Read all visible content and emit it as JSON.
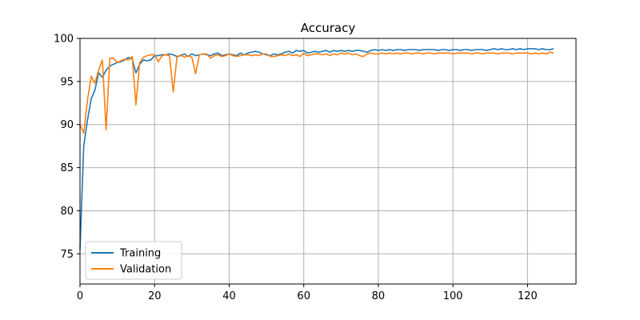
{
  "chart_data": {
    "type": "line",
    "title": "Accuracy",
    "xlabel": "",
    "ylabel": "",
    "xlim": [
      0,
      133
    ],
    "ylim": [
      71.5,
      100
    ],
    "xticks": [
      0,
      20,
      40,
      60,
      80,
      100,
      120
    ],
    "yticks": [
      75,
      80,
      85,
      90,
      95,
      100
    ],
    "grid": true,
    "legend_position": "lower-left",
    "series": [
      {
        "name": "Training",
        "color": "#1f77b4",
        "x": [
          0,
          1,
          2,
          3,
          4,
          5,
          6,
          7,
          8,
          9,
          10,
          11,
          12,
          13,
          14,
          15,
          16,
          17,
          18,
          19,
          20,
          21,
          22,
          23,
          24,
          25,
          26,
          27,
          28,
          29,
          30,
          31,
          32,
          33,
          34,
          35,
          36,
          37,
          38,
          39,
          40,
          41,
          42,
          43,
          44,
          45,
          46,
          47,
          48,
          49,
          50,
          51,
          52,
          53,
          54,
          55,
          56,
          57,
          58,
          59,
          60,
          61,
          62,
          63,
          64,
          65,
          66,
          67,
          68,
          69,
          70,
          71,
          72,
          73,
          74,
          75,
          76,
          77,
          78,
          79,
          80,
          81,
          82,
          83,
          84,
          85,
          86,
          87,
          88,
          89,
          90,
          91,
          92,
          93,
          94,
          95,
          96,
          97,
          98,
          99,
          100,
          101,
          102,
          103,
          104,
          105,
          106,
          107,
          108,
          109,
          110,
          111,
          112,
          113,
          114,
          115,
          116,
          117,
          118,
          119,
          120,
          121,
          122,
          123,
          124,
          125,
          126,
          127
        ],
        "y": [
          75.5,
          87.5,
          90.5,
          93.0,
          94.0,
          96.0,
          95.5,
          96.3,
          96.8,
          97.0,
          97.2,
          97.3,
          97.5,
          97.8,
          97.6,
          96.0,
          97.0,
          97.5,
          97.4,
          97.5,
          98.0,
          98.0,
          98.1,
          98.1,
          98.2,
          98.1,
          97.9,
          98.0,
          98.2,
          97.9,
          98.2,
          98.0,
          98.1,
          98.2,
          98.1,
          98.0,
          98.2,
          98.3,
          98.0,
          98.1,
          98.2,
          98.1,
          98.0,
          98.3,
          98.1,
          98.3,
          98.4,
          98.5,
          98.4,
          98.2,
          98.1,
          98.0,
          98.2,
          98.1,
          98.2,
          98.4,
          98.5,
          98.3,
          98.6,
          98.5,
          98.6,
          98.3,
          98.4,
          98.5,
          98.4,
          98.5,
          98.6,
          98.4,
          98.6,
          98.5,
          98.6,
          98.5,
          98.6,
          98.5,
          98.6,
          98.6,
          98.5,
          98.4,
          98.6,
          98.7,
          98.6,
          98.7,
          98.6,
          98.7,
          98.6,
          98.7,
          98.7,
          98.6,
          98.7,
          98.7,
          98.7,
          98.6,
          98.7,
          98.7,
          98.7,
          98.7,
          98.6,
          98.7,
          98.7,
          98.6,
          98.7,
          98.7,
          98.6,
          98.7,
          98.7,
          98.6,
          98.7,
          98.7,
          98.7,
          98.6,
          98.7,
          98.8,
          98.7,
          98.8,
          98.7,
          98.7,
          98.8,
          98.7,
          98.8,
          98.7,
          98.8,
          98.8,
          98.8,
          98.7,
          98.8,
          98.7,
          98.7,
          98.8
        ]
      },
      {
        "name": "Validation",
        "color": "#ff7f0e",
        "x": [
          0,
          1,
          2,
          3,
          4,
          5,
          6,
          7,
          8,
          9,
          10,
          11,
          12,
          13,
          14,
          15,
          16,
          17,
          18,
          19,
          20,
          21,
          22,
          23,
          24,
          25,
          26,
          27,
          28,
          29,
          30,
          31,
          32,
          33,
          34,
          35,
          36,
          37,
          38,
          39,
          40,
          41,
          42,
          43,
          44,
          45,
          46,
          47,
          48,
          49,
          50,
          51,
          52,
          53,
          54,
          55,
          56,
          57,
          58,
          59,
          60,
          61,
          62,
          63,
          64,
          65,
          66,
          67,
          68,
          69,
          70,
          71,
          72,
          73,
          74,
          75,
          76,
          77,
          78,
          79,
          80,
          81,
          82,
          83,
          84,
          85,
          86,
          87,
          88,
          89,
          90,
          91,
          92,
          93,
          94,
          95,
          96,
          97,
          98,
          99,
          100,
          101,
          102,
          103,
          104,
          105,
          106,
          107,
          108,
          109,
          110,
          111,
          112,
          113,
          114,
          115,
          116,
          117,
          118,
          119,
          120,
          121,
          122,
          123,
          124,
          125,
          126,
          127
        ],
        "y": [
          90.0,
          89.0,
          92.8,
          95.6,
          94.8,
          96.3,
          97.5,
          89.4,
          97.7,
          97.7,
          97.2,
          97.4,
          97.6,
          97.5,
          97.9,
          92.3,
          97.2,
          97.8,
          98.0,
          98.1,
          98.1,
          97.3,
          98.0,
          98.1,
          98.0,
          93.8,
          97.8,
          98.1,
          97.8,
          98.0,
          97.8,
          95.9,
          98.1,
          98.2,
          98.2,
          97.7,
          98.0,
          98.1,
          97.9,
          98.0,
          98.2,
          98.0,
          97.9,
          98.0,
          98.1,
          98.1,
          98.0,
          98.1,
          98.0,
          98.2,
          98.2,
          97.9,
          97.9,
          98.0,
          98.1,
          98.0,
          98.2,
          98.0,
          98.1,
          97.9,
          98.3,
          98.0,
          98.1,
          98.2,
          98.2,
          98.1,
          98.2,
          98.0,
          98.2,
          98.1,
          98.3,
          98.2,
          98.3,
          98.1,
          98.2,
          98.0,
          97.9,
          98.2,
          98.3,
          98.2,
          98.2,
          98.3,
          98.2,
          98.3,
          98.2,
          98.3,
          98.2,
          98.3,
          98.3,
          98.2,
          98.3,
          98.3,
          98.2,
          98.3,
          98.3,
          98.2,
          98.3,
          98.3,
          98.3,
          98.3,
          98.2,
          98.3,
          98.3,
          98.3,
          98.3,
          98.2,
          98.3,
          98.3,
          98.2,
          98.3,
          98.3,
          98.3,
          98.2,
          98.3,
          98.3,
          98.3,
          98.2,
          98.3,
          98.3,
          98.3,
          98.3,
          98.2,
          98.3,
          98.2,
          98.3,
          98.2,
          98.4,
          98.3
        ]
      }
    ]
  }
}
